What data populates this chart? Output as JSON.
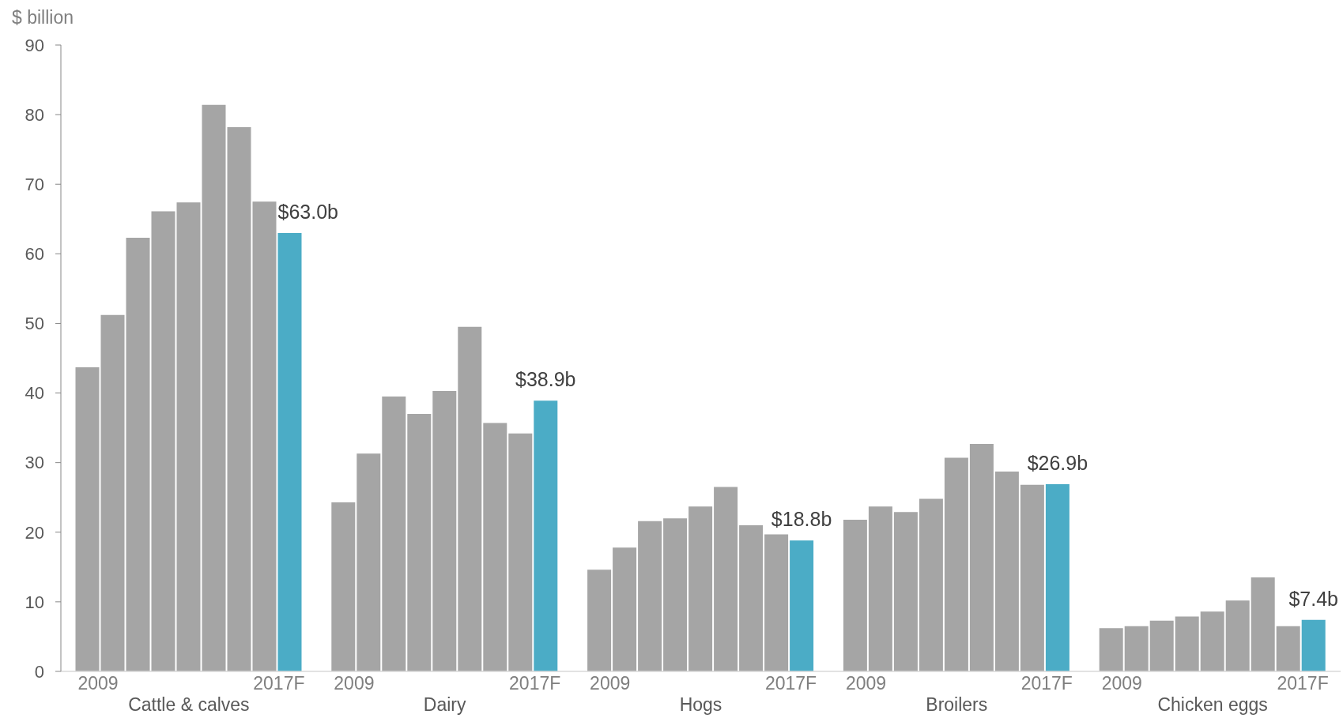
{
  "chart_data": {
    "type": "bar",
    "ylabel": "$ billion",
    "categories": [
      "Cattle & calves",
      "Dairy",
      "Hogs",
      "Broilers",
      "Chicken eggs"
    ],
    "ylim": [
      0,
      90
    ],
    "yticks": [
      0,
      10,
      20,
      30,
      40,
      50,
      60,
      70,
      80,
      90
    ],
    "series": [
      {
        "name": "2009",
        "color": "#a5a5a5",
        "values": [
          43.7,
          24.3,
          14.6,
          21.8,
          6.2
        ]
      },
      {
        "color": "#a5a5a5",
        "values": [
          51.2,
          31.3,
          17.8,
          23.7,
          6.5
        ]
      },
      {
        "color": "#a5a5a5",
        "values": [
          62.3,
          39.5,
          21.6,
          22.9,
          7.3
        ]
      },
      {
        "color": "#a5a5a5",
        "values": [
          66.1,
          37.0,
          22.0,
          24.8,
          7.9
        ]
      },
      {
        "color": "#a5a5a5",
        "values": [
          67.4,
          40.3,
          23.7,
          30.7,
          8.6
        ]
      },
      {
        "color": "#a5a5a5",
        "values": [
          81.4,
          49.5,
          26.5,
          32.7,
          10.2
        ]
      },
      {
        "color": "#a5a5a5",
        "values": [
          78.2,
          35.7,
          21.0,
          28.7,
          13.5
        ]
      },
      {
        "color": "#a5a5a5",
        "values": [
          67.5,
          34.2,
          19.7,
          26.8,
          6.5
        ]
      },
      {
        "name": "2017F",
        "color": "#4bacc6",
        "values": [
          63.0,
          38.9,
          18.8,
          26.9,
          7.4
        ],
        "value_labels": [
          "$63.0b",
          "$38.9b",
          "$18.8b",
          "$26.9b",
          "$7.4b"
        ]
      }
    ]
  }
}
